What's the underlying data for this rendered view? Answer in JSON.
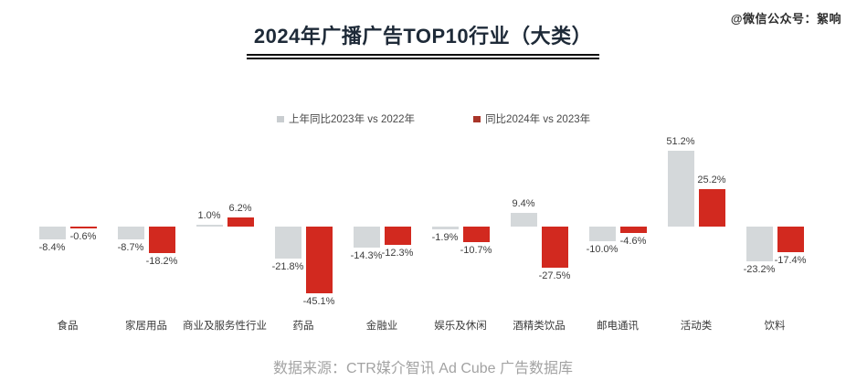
{
  "title": "2024年广播广告TOP10行业（大类）",
  "watermark": "@微信公众号：絮响",
  "footer": "数据来源：CTR媒介智讯 Ad Cube 广告数据库",
  "legend": {
    "items": [
      {
        "label": "上年同比2023年 vs 2022年",
        "color": "#c9cdd0"
      },
      {
        "label": "同比2024年 vs 2023年",
        "color": "#a93529"
      }
    ],
    "position": "top-center"
  },
  "colors": {
    "gray_bar": "#d4d8da",
    "red_bar": "#d2291f",
    "title_text": "#1e2a38",
    "underline": "#0e0e0e",
    "value_label": "#3d3d3d",
    "category_label": "#3a3a3a",
    "footer_text": "#a3a3a3"
  },
  "chart_data": {
    "type": "bar",
    "title": "2024年广播广告TOP10行业（大类）",
    "xlabel": "",
    "ylabel": "",
    "value_suffix": "%",
    "grid": false,
    "axis_lines": false,
    "legend_position": "top",
    "ylim": [
      -45.1,
      51.2
    ],
    "categories": [
      "食品",
      "家居用品",
      "商业及服务性行业",
      "药品",
      "金融业",
      "娱乐及休闲",
      "酒精类饮品",
      "邮电通讯",
      "活动类",
      "饮料"
    ],
    "series": [
      {
        "name": "上年同比2023年 vs 2022年",
        "color": "#d4d8da",
        "values": [
          -8.4,
          -8.7,
          1.0,
          -21.8,
          -14.3,
          -1.9,
          9.4,
          -10.0,
          51.2,
          -23.2
        ]
      },
      {
        "name": "同比2024年 vs 2023年",
        "color": "#d2291f",
        "values": [
          -0.6,
          -18.2,
          6.2,
          -45.1,
          -12.3,
          -10.7,
          -27.5,
          -4.6,
          25.2,
          -17.4
        ]
      }
    ]
  }
}
